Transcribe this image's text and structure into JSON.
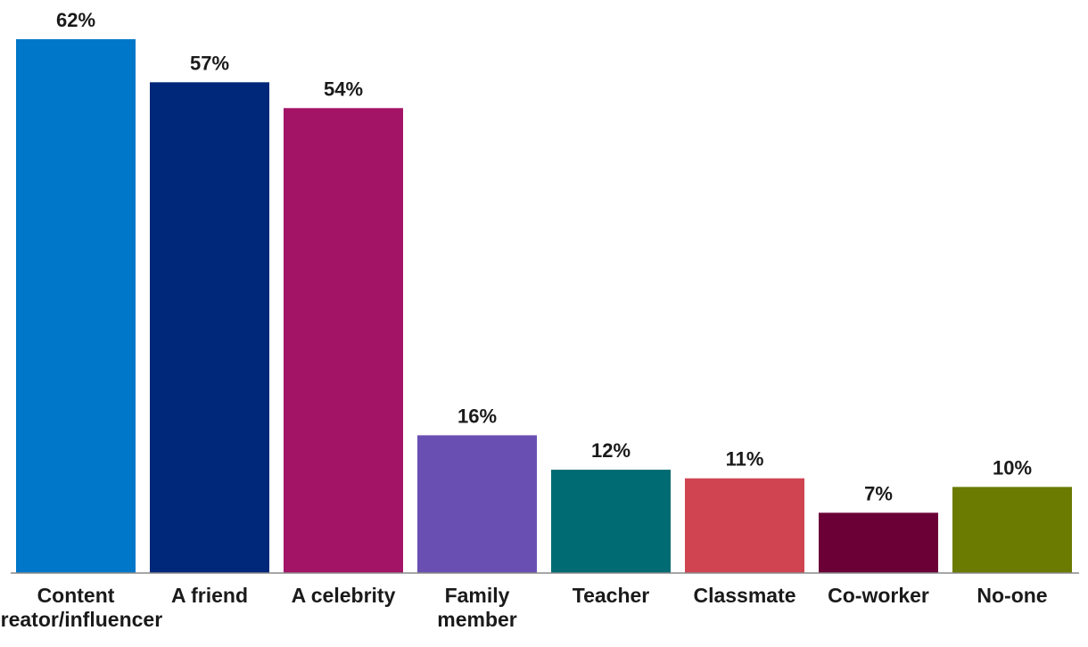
{
  "chart_data": {
    "type": "bar",
    "title": "",
    "xlabel": "",
    "ylabel": "",
    "ylim": [
      0,
      62
    ],
    "grid": false,
    "legend": "none",
    "categories": [
      [
        "Content",
        "creator/influencer"
      ],
      [
        "A friend"
      ],
      [
        "A celebrity"
      ],
      [
        "Family",
        "member"
      ],
      [
        "Teacher"
      ],
      [
        "Classmate"
      ],
      [
        "Co-worker"
      ],
      [
        "No-one"
      ]
    ],
    "values": [
      62,
      57,
      54,
      16,
      12,
      11,
      7,
      10
    ],
    "value_labels": [
      "62%",
      "57%",
      "54%",
      "16%",
      "12%",
      "11%",
      "7%",
      "10%"
    ],
    "colors": [
      "#0077c8",
      "#00287a",
      "#a31466",
      "#6a4fb3",
      "#006b73",
      "#d04452",
      "#6b0037",
      "#6b7a00"
    ]
  }
}
